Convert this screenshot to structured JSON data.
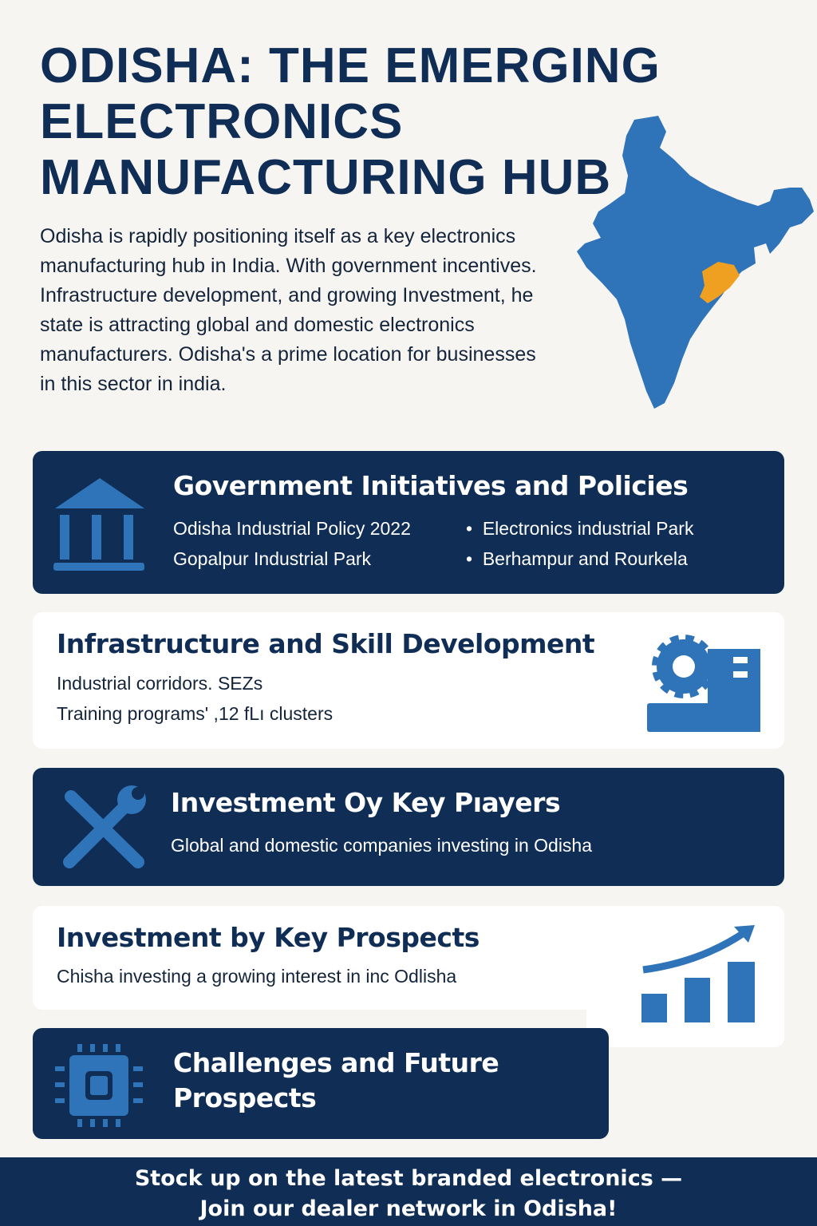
{
  "title": "ODISHA: THE EMERGING ELECTRONICS MANUFACTURING HUB",
  "intro": "Odisha is rapidly positioning itself as a key electronics manufacturing hub in India. With government incentives. Infrastructure development, and growing Investment, he state is attracting global and domestic electronics manufacturers. Odisha's a prime location for businesses in this sector in india.",
  "colors": {
    "navy": "#0f2d55",
    "blue": "#2f73b8",
    "highlight": "#f0a020",
    "background": "#f7f5f1"
  },
  "sections": [
    {
      "title": "Government Initiatives and Policies",
      "icon": "government-building-icon",
      "items": [
        "Odisha Industrial Policy 2022",
        "Electronics industrial Park",
        "Gopalpur Industrial Park",
        "Berhampur and Rourkela"
      ]
    },
    {
      "title": "Infrastructure and Skill Development",
      "icon": "gear-factory-icon",
      "lines": [
        "Industrial corridors. SEZs",
        "Training programs' ,12 fLı clusters"
      ]
    },
    {
      "title": "Investment Oy Key Pıayers",
      "icon": "wrench-screwdriver-icon",
      "lines": [
        "Global and domestic companies investing in Odisha"
      ]
    },
    {
      "title": "Investment by Key Prospects",
      "icon": "growth-chart-icon",
      "lines": [
        "Chisha investing a growing interest in inc Odlisha"
      ]
    },
    {
      "title": "Challenges and Future Prospects",
      "icon": "microchip-icon"
    }
  ],
  "footer": {
    "line1": "Stock up on the latest branded electronics —",
    "line2": "Join our dealer network in Odisha!"
  }
}
